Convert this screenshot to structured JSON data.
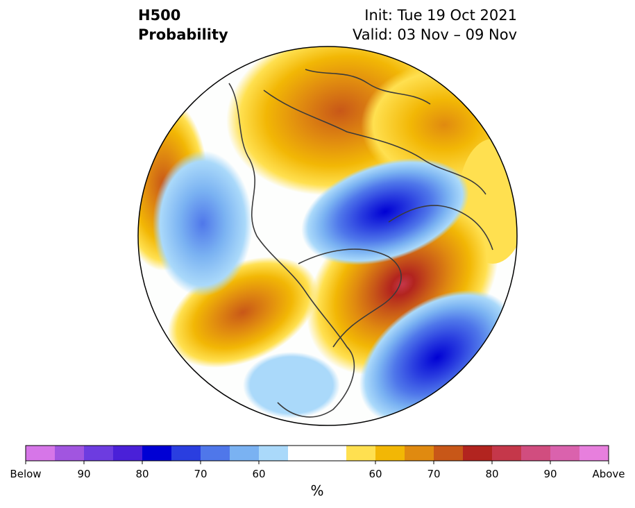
{
  "header": {
    "variable": "H500",
    "product": "Probability",
    "init": "Init: Tue 19 Oct 2021",
    "valid": "Valid: 03 Nov – 09 Nov"
  },
  "colorbar": {
    "unit": "%",
    "colors": [
      "#d676e8",
      "#a155e0",
      "#6d3ce0",
      "#4a20d8",
      "#0000d4",
      "#2a3ee0",
      "#4f77ea",
      "#7ab2f2",
      "#aad9fa",
      "#ffffff",
      "#ffffff",
      "#ffe050",
      "#f2b705",
      "#e08a10",
      "#c85718",
      "#b2241f",
      "#c5374a",
      "#d14d7f",
      "#da62ad",
      "#e77fdd"
    ],
    "tick_labels": [
      "Below",
      "90",
      "80",
      "70",
      "60",
      "60",
      "70",
      "80",
      "90",
      "Above"
    ]
  },
  "colors": {
    "outline": "#000000",
    "land_lines": "#3a3a3a"
  }
}
